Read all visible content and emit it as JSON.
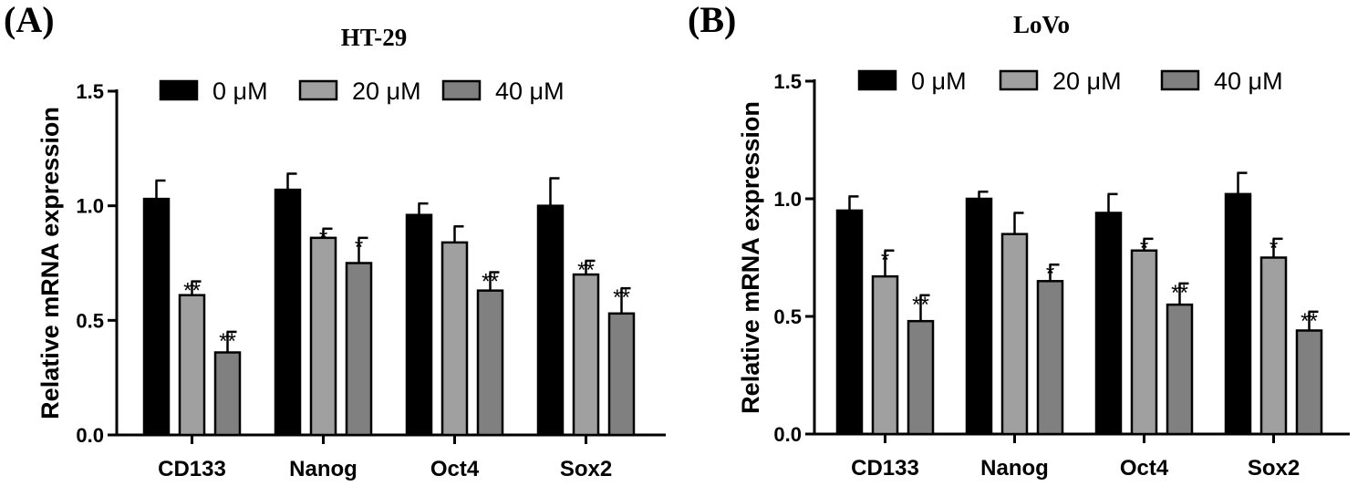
{
  "chart_data": [
    {
      "type": "bar",
      "panel_label": "(A)",
      "title": "HT-29",
      "xlabel": "",
      "ylabel": "Relative mRNA expression",
      "ylim": [
        0,
        1.5
      ],
      "yticks": [
        0.0,
        0.5,
        1.0,
        1.5
      ],
      "ytick_labels": [
        "0.0",
        "0.5",
        "1.0",
        "1.5"
      ],
      "categories": [
        "CD133",
        "Nanog",
        "Oct4",
        "Sox2"
      ],
      "legend_position": "top",
      "series": [
        {
          "name": "0 μM",
          "color": "#000000",
          "values": [
            1.03,
            1.07,
            0.96,
            1.0
          ],
          "errors": [
            0.08,
            0.07,
            0.05,
            0.12
          ],
          "significance": [
            "",
            "",
            "",
            ""
          ]
        },
        {
          "name": "20 μM",
          "color": "#a0a0a0",
          "values": [
            0.61,
            0.86,
            0.84,
            0.7
          ],
          "errors": [
            0.06,
            0.04,
            0.07,
            0.06
          ],
          "significance": [
            "**",
            "*",
            "",
            "**"
          ]
        },
        {
          "name": "40 μM",
          "color": "#808080",
          "values": [
            0.36,
            0.75,
            0.63,
            0.53
          ],
          "errors": [
            0.09,
            0.11,
            0.08,
            0.11
          ],
          "significance": [
            "**",
            "*",
            "**",
            "**"
          ]
        }
      ]
    },
    {
      "type": "bar",
      "panel_label": "(B)",
      "title": "LoVo",
      "xlabel": "",
      "ylabel": "Relative mRNA expression",
      "ylim": [
        0,
        1.5
      ],
      "yticks": [
        0.0,
        0.5,
        1.0,
        1.5
      ],
      "ytick_labels": [
        "0.0",
        "0.5",
        "1.0",
        "1.5"
      ],
      "categories": [
        "CD133",
        "Nanog",
        "Oct4",
        "Sox2"
      ],
      "legend_position": "top",
      "series": [
        {
          "name": "0 μM",
          "color": "#000000",
          "values": [
            0.95,
            1.0,
            0.94,
            1.02
          ],
          "errors": [
            0.06,
            0.03,
            0.08,
            0.09
          ],
          "significance": [
            "",
            "",
            "",
            ""
          ]
        },
        {
          "name": "20 μM",
          "color": "#a0a0a0",
          "values": [
            0.67,
            0.85,
            0.78,
            0.75
          ],
          "errors": [
            0.11,
            0.09,
            0.05,
            0.08
          ],
          "significance": [
            "*",
            "",
            "*",
            "*"
          ]
        },
        {
          "name": "40 μM",
          "color": "#808080",
          "values": [
            0.48,
            0.65,
            0.55,
            0.44
          ],
          "errors": [
            0.11,
            0.07,
            0.09,
            0.08
          ],
          "significance": [
            "**",
            "*",
            "**",
            "**"
          ]
        }
      ]
    }
  ]
}
